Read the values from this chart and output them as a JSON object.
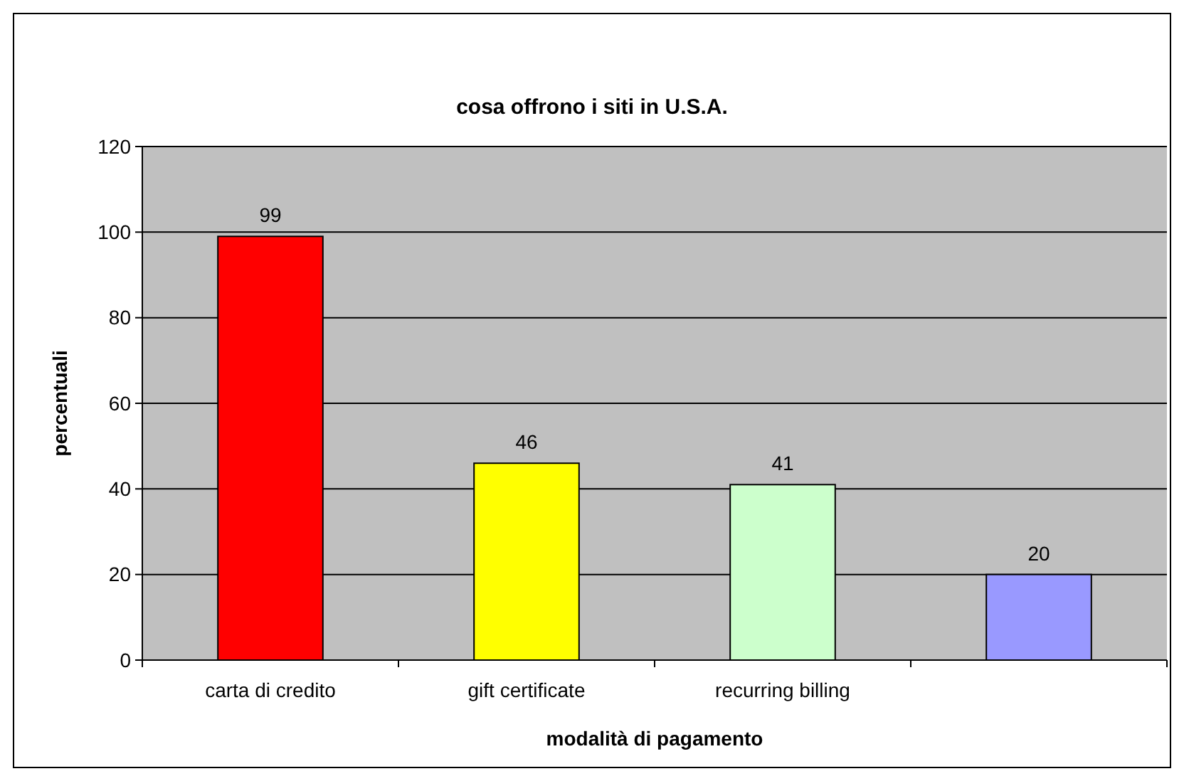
{
  "chart_data": {
    "type": "bar",
    "title": "cosa offrono i siti in U.S.A.",
    "xlabel": "modalità di pagamento",
    "ylabel": "percentuali",
    "categories": [
      "carta di credito",
      "gift certificate",
      "recurring billing",
      null
    ],
    "values": [
      99,
      46,
      41,
      20
    ],
    "colors": [
      "#ff0000",
      "#ffff00",
      "#ccffcc",
      "#9999ff"
    ],
    "ylim": [
      0,
      120
    ],
    "yticks": [
      0,
      20,
      40,
      60,
      80,
      100,
      120
    ],
    "grid": "y",
    "data_labels": true
  }
}
